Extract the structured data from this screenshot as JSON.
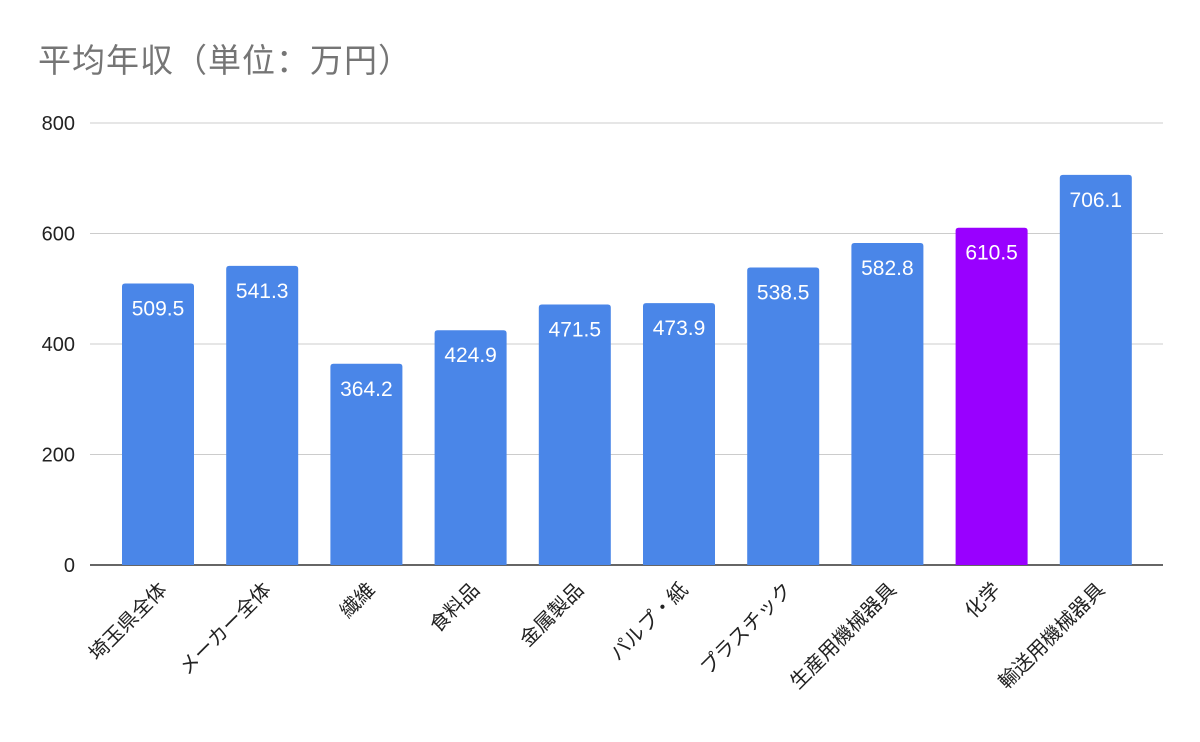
{
  "chart_data": {
    "type": "bar",
    "title": "平均年収（単位：万円）",
    "xlabel": "",
    "ylabel": "",
    "ylim": [
      0,
      800
    ],
    "yticks": [
      0,
      200,
      400,
      600,
      800
    ],
    "grid": true,
    "legend": "none",
    "categories": [
      "埼玉県全体",
      "メーカー全体",
      "繊維",
      "食料品",
      "金属製品",
      "パルプ・紙",
      "プラスチック",
      "生産用機械器具",
      "化学",
      "輸送用機械器具"
    ],
    "values": [
      509.5,
      541.3,
      364.2,
      424.9,
      471.5,
      473.9,
      538.5,
      582.8,
      610.5,
      706.1
    ],
    "data_labels": [
      "509.5",
      "541.3",
      "364.2",
      "424.9",
      "471.5",
      "473.9",
      "538.5",
      "582.8",
      "610.5",
      "706.1"
    ],
    "colors": {
      "default": "#4a86e8",
      "highlight": "#9900ff",
      "highlight_category": "化学"
    }
  }
}
